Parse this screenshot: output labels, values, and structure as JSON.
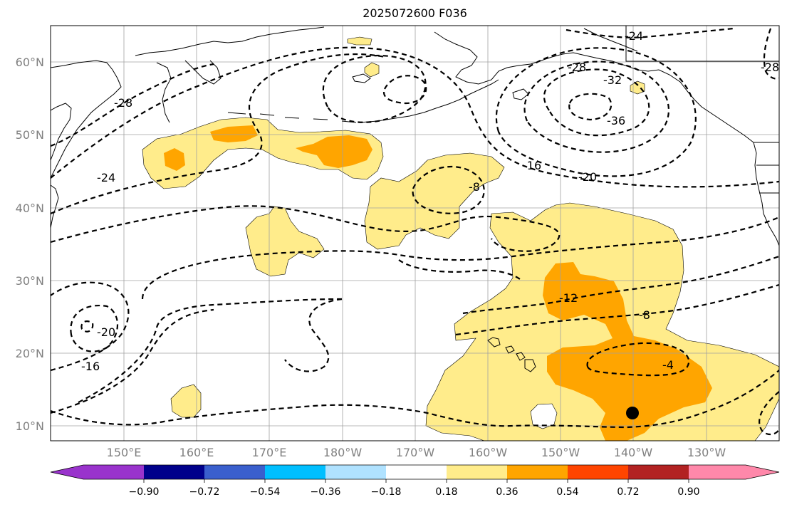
{
  "title": "2025072600 F036",
  "colors": {
    "land_coast": "#000000",
    "grid": "#a0a0a0",
    "contour": "#000000",
    "label_gray": "#808080",
    "marker": "#000000"
  },
  "map": {
    "projection": "plate carree",
    "lon_range": "140E-120W",
    "lat_range": "8N-65N",
    "lat_labels": [
      "10°N",
      "20°N",
      "30°N",
      "40°N",
      "50°N",
      "60°N"
    ],
    "lon_labels": [
      "150°E",
      "160°E",
      "170°E",
      "180°W",
      "170°W",
      "160°W",
      "150°W",
      "140°W",
      "130°W"
    ],
    "gridlines": true,
    "storm_marker": {
      "lat": 12,
      "lon": "140°W"
    }
  },
  "colorbar": {
    "orientation": "horizontal",
    "extend": "both",
    "colors": [
      "#9933cc",
      "#00008b",
      "#3a5fcd",
      "#00bfff",
      "#b0e2ff",
      "#ffffff",
      "#ffec8b",
      "#ffa500",
      "#ff4500",
      "#b22222",
      "#ff88aa"
    ],
    "tick_labels": [
      "−0.90",
      "−0.72",
      "−0.54",
      "−0.36",
      "−0.18",
      "0.18",
      "0.36",
      "0.54",
      "0.72",
      "0.90"
    ]
  },
  "contours": {
    "style": "dashed",
    "labels": [
      "-24",
      "-28",
      "-32",
      "-36",
      "-28",
      "-28",
      "-24",
      "-16",
      "-20",
      "-8",
      "-12",
      "-8",
      "-4",
      "-20",
      "-16"
    ]
  }
}
